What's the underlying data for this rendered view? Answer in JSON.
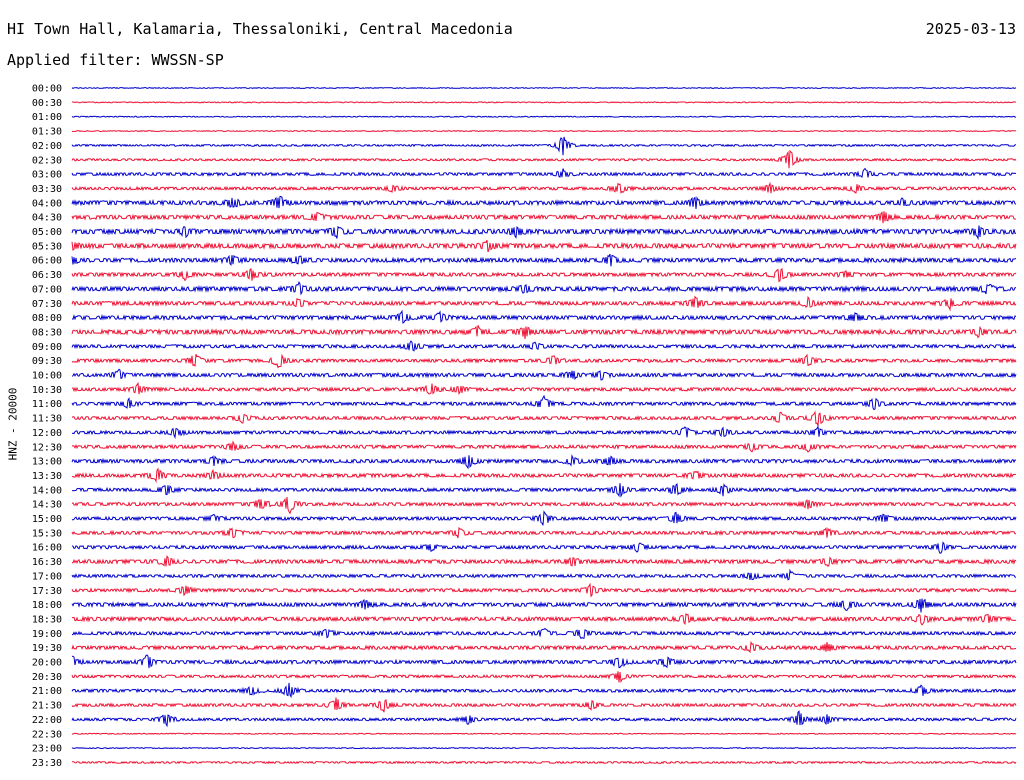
{
  "header": {
    "station": "HI Town Hall, Kalamaria, Thessaloniki, Central Macedonia",
    "date": "2025-03-13",
    "filter": "Applied filter: WWSSN-SP"
  },
  "chart_data": {
    "type": "line",
    "title": "HI Town Hall, Kalamaria, Thessaloniki, Central Macedonia",
    "ylabel": "HNZ - 20000",
    "row_labels": [
      "00:00",
      "00:30",
      "01:00",
      "01:30",
      "02:00",
      "02:30",
      "03:00",
      "03:30",
      "04:00",
      "04:30",
      "05:00",
      "05:30",
      "06:00",
      "06:30",
      "07:00",
      "07:30",
      "08:00",
      "08:30",
      "09:00",
      "09:30",
      "10:00",
      "10:30",
      "11:00",
      "11:30",
      "12:00",
      "12:30",
      "13:00",
      "13:30",
      "14:00",
      "14:30",
      "15:00",
      "15:30",
      "16:00",
      "16:30",
      "17:00",
      "17:30",
      "18:00",
      "18:30",
      "19:00",
      "19:30",
      "20:00",
      "20:30",
      "21:00",
      "21:30",
      "22:00",
      "22:30",
      "23:00",
      "23:30"
    ],
    "colors": [
      "#0000cc",
      "#ee1133"
    ],
    "noise_level": [
      0.3,
      0.3,
      0.3,
      0.3,
      0.6,
      0.7,
      1,
      1,
      1.4,
      1.4,
      1.6,
      1.6,
      1.4,
      1.2,
      1.5,
      1.3,
      1.3,
      1.5,
      1.1,
      1.1,
      1.2,
      1.1,
      1.1,
      1.1,
      1.1,
      1.1,
      1.2,
      1.2,
      1.1,
      1.1,
      1.1,
      1.1,
      1.1,
      1.3,
      1,
      1.1,
      1.3,
      1.3,
      1.1,
      1.2,
      1.2,
      0.9,
      1,
      1,
      0.9,
      0.3,
      0.3,
      0.6
    ],
    "events": [
      [],
      [],
      [],
      [],
      [
        [
          0.52,
          9
        ]
      ],
      [
        [
          0.76,
          10
        ]
      ],
      [
        [
          0.52,
          4
        ],
        [
          0.84,
          4
        ]
      ],
      [
        [
          0.34,
          3
        ],
        [
          0.58,
          5
        ],
        [
          0.74,
          4
        ],
        [
          0.83,
          4
        ]
      ],
      [
        [
          0.17,
          5
        ],
        [
          0.22,
          6
        ],
        [
          0.66,
          5
        ],
        [
          0.88,
          3
        ]
      ],
      [
        [
          0.26,
          4
        ],
        [
          0.86,
          5
        ]
      ],
      [
        [
          0.12,
          4
        ],
        [
          0.28,
          5
        ],
        [
          0.47,
          4
        ],
        [
          0.96,
          5
        ]
      ],
      [
        [
          0.0,
          4
        ],
        [
          0.44,
          4
        ]
      ],
      [
        [
          0.0,
          3
        ],
        [
          0.17,
          4
        ],
        [
          0.24,
          4
        ],
        [
          0.57,
          5
        ]
      ],
      [
        [
          0.12,
          4
        ],
        [
          0.19,
          5
        ],
        [
          0.75,
          6
        ],
        [
          0.82,
          3
        ]
      ],
      [
        [
          0.24,
          5
        ],
        [
          0.48,
          3
        ],
        [
          0.97,
          4
        ]
      ],
      [
        [
          0.24,
          4
        ],
        [
          0.66,
          5
        ],
        [
          0.78,
          4
        ],
        [
          0.93,
          4
        ]
      ],
      [
        [
          0.35,
          5
        ],
        [
          0.39,
          4
        ],
        [
          0.83,
          4
        ]
      ],
      [
        [
          0.43,
          4
        ],
        [
          0.48,
          5
        ],
        [
          0.96,
          4
        ]
      ],
      [
        [
          0.36,
          5
        ],
        [
          0.49,
          3
        ]
      ],
      [
        [
          0.13,
          6
        ],
        [
          0.22,
          7
        ],
        [
          0.51,
          4
        ],
        [
          0.78,
          5
        ]
      ],
      [
        [
          0.05,
          4
        ],
        [
          0.53,
          4
        ],
        [
          0.56,
          4
        ]
      ],
      [
        [
          0.07,
          4
        ],
        [
          0.38,
          5
        ],
        [
          0.41,
          4
        ]
      ],
      [
        [
          0.06,
          4
        ],
        [
          0.5,
          6
        ],
        [
          0.85,
          5
        ]
      ],
      [
        [
          0.18,
          4
        ],
        [
          0.75,
          5
        ],
        [
          0.79,
          7
        ]
      ],
      [
        [
          0.11,
          4
        ],
        [
          0.65,
          5
        ],
        [
          0.69,
          4
        ],
        [
          0.79,
          4
        ]
      ],
      [
        [
          0.17,
          4
        ],
        [
          0.72,
          4
        ],
        [
          0.78,
          4
        ]
      ],
      [
        [
          0.15,
          4
        ],
        [
          0.42,
          6
        ],
        [
          0.53,
          4
        ],
        [
          0.57,
          4
        ]
      ],
      [
        [
          0.09,
          6
        ],
        [
          0.15,
          4
        ],
        [
          0.66,
          4
        ]
      ],
      [
        [
          0.1,
          5
        ],
        [
          0.58,
          6
        ],
        [
          0.64,
          6
        ],
        [
          0.69,
          5
        ]
      ],
      [
        [
          0.2,
          6
        ],
        [
          0.23,
          8
        ],
        [
          0.78,
          4
        ]
      ],
      [
        [
          0.15,
          3
        ],
        [
          0.5,
          6
        ],
        [
          0.64,
          6
        ],
        [
          0.86,
          4
        ]
      ],
      [
        [
          0.17,
          4
        ],
        [
          0.41,
          4
        ],
        [
          0.8,
          4
        ]
      ],
      [
        [
          0.38,
          3
        ],
        [
          0.6,
          4
        ],
        [
          0.92,
          5
        ]
      ],
      [
        [
          0.1,
          4
        ],
        [
          0.53,
          4
        ],
        [
          0.8,
          4
        ]
      ],
      [
        [
          0.72,
          4
        ],
        [
          0.76,
          4
        ]
      ],
      [
        [
          0.12,
          4
        ],
        [
          0.55,
          5
        ]
      ],
      [
        [
          0.31,
          4
        ],
        [
          0.82,
          5
        ],
        [
          0.9,
          6
        ]
      ],
      [
        [
          0.65,
          4
        ],
        [
          0.9,
          5
        ],
        [
          0.97,
          4
        ]
      ],
      [
        [
          0.27,
          4
        ],
        [
          0.5,
          4
        ],
        [
          0.54,
          5
        ]
      ],
      [
        [
          0.72,
          4
        ],
        [
          0.8,
          4
        ]
      ],
      [
        [
          0.0,
          5
        ],
        [
          0.08,
          6
        ],
        [
          0.58,
          5
        ],
        [
          0.63,
          5
        ]
      ],
      [
        [
          0.58,
          5
        ]
      ],
      [
        [
          0.19,
          4
        ],
        [
          0.23,
          6
        ],
        [
          0.9,
          5
        ]
      ],
      [
        [
          0.28,
          6
        ],
        [
          0.33,
          6
        ],
        [
          0.55,
          4
        ]
      ],
      [
        [
          0.1,
          6
        ],
        [
          0.42,
          4
        ],
        [
          0.77,
          7
        ],
        [
          0.8,
          4
        ]
      ],
      [],
      [],
      []
    ]
  }
}
